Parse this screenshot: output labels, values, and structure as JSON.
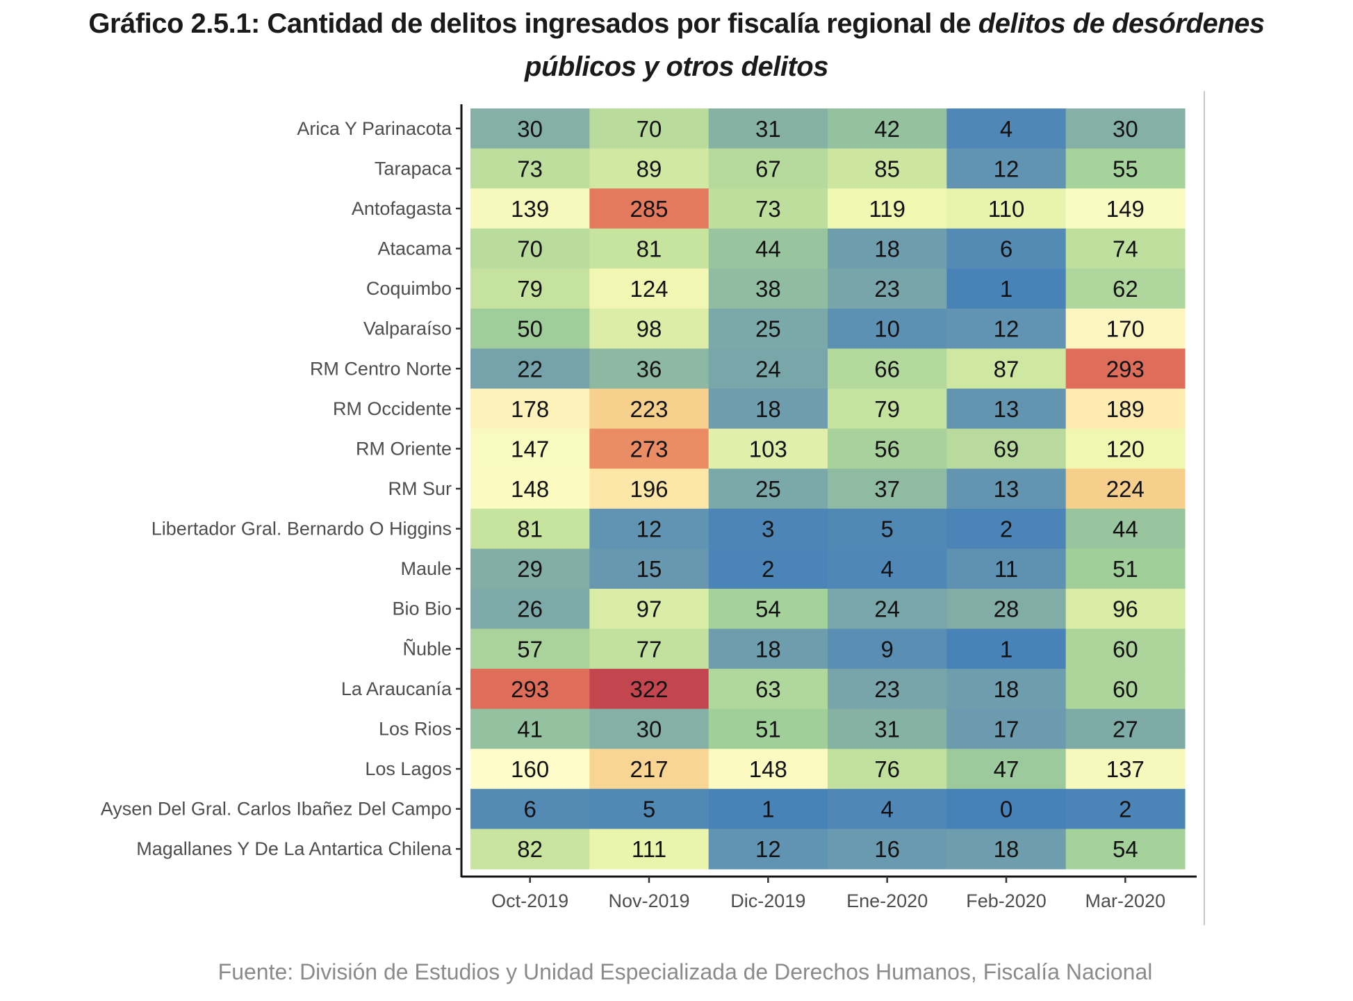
{
  "title": {
    "line1_regular": "Gráfico 2.5.1: Cantidad de delitos ingresados por fiscalía regional de ",
    "line1_italic": "delitos de desórdenes",
    "line2_italic": "públicos y otros delitos"
  },
  "footer": "Fuente: División de Estudios y Unidad Especializada de Derechos Humanos, Fiscalía Nacional",
  "chart_data": {
    "type": "heatmap",
    "title": "Gráfico 2.5.1: Cantidad de delitos ingresados por fiscalía regional de delitos de desórdenes públicos y otros delitos",
    "xlabel": "",
    "ylabel": "",
    "x": [
      "Oct-2019",
      "Nov-2019",
      "Dic-2019",
      "Ene-2020",
      "Feb-2020",
      "Mar-2020"
    ],
    "y": [
      "Arica Y Parinacota",
      "Tarapaca",
      "Antofagasta",
      "Atacama",
      "Coquimbo",
      "Valparaíso",
      "RM Centro Norte",
      "RM Occidente",
      "RM Oriente",
      "RM Sur",
      "Libertador Gral. Bernardo O Higgins",
      "Maule",
      "Bio Bio",
      "Ñuble",
      "La Araucanía",
      "Los Rios",
      "Los Lagos",
      "Aysen Del Gral. Carlos Ibañez Del Campo",
      "Magallanes Y De La Antartica Chilena"
    ],
    "values": [
      [
        30,
        70,
        31,
        42,
        4,
        30
      ],
      [
        73,
        89,
        67,
        85,
        12,
        55
      ],
      [
        139,
        285,
        73,
        119,
        110,
        149
      ],
      [
        70,
        81,
        44,
        18,
        6,
        74
      ],
      [
        79,
        124,
        38,
        23,
        1,
        62
      ],
      [
        50,
        98,
        25,
        10,
        12,
        170
      ],
      [
        22,
        36,
        24,
        66,
        87,
        293
      ],
      [
        178,
        223,
        18,
        79,
        13,
        189
      ],
      [
        147,
        273,
        103,
        56,
        69,
        120
      ],
      [
        148,
        196,
        25,
        37,
        13,
        224
      ],
      [
        81,
        12,
        3,
        5,
        2,
        44
      ],
      [
        29,
        15,
        2,
        4,
        11,
        51
      ],
      [
        26,
        97,
        54,
        24,
        28,
        96
      ],
      [
        57,
        77,
        18,
        9,
        1,
        60
      ],
      [
        293,
        322,
        63,
        23,
        18,
        60
      ],
      [
        41,
        30,
        51,
        31,
        17,
        27
      ],
      [
        160,
        217,
        148,
        76,
        47,
        137
      ],
      [
        6,
        5,
        1,
        4,
        0,
        2
      ],
      [
        82,
        111,
        12,
        16,
        18,
        54
      ]
    ],
    "value_range": [
      0,
      322
    ],
    "color_scale": {
      "palette": "Spectral (reversed, low=blue, high=red)",
      "stops": [
        {
          "value": 0,
          "color": "#4682B8"
        },
        {
          "value": 15,
          "color": "#6898B0"
        },
        {
          "value": 30,
          "color": "#85B0A5"
        },
        {
          "value": 50,
          "color": "#A0CE9A"
        },
        {
          "value": 80,
          "color": "#C6E39E"
        },
        {
          "value": 115,
          "color": "#EEF6AE"
        },
        {
          "value": 160,
          "color": "#FEFCC8"
        },
        {
          "value": 200,
          "color": "#FCE5A6"
        },
        {
          "value": 225,
          "color": "#F7CE8C"
        },
        {
          "value": 275,
          "color": "#EA8A62"
        },
        {
          "value": 293,
          "color": "#DE6E5A"
        },
        {
          "value": 322,
          "color": "#C3464F"
        }
      ]
    },
    "legend": "none",
    "grid": false
  }
}
